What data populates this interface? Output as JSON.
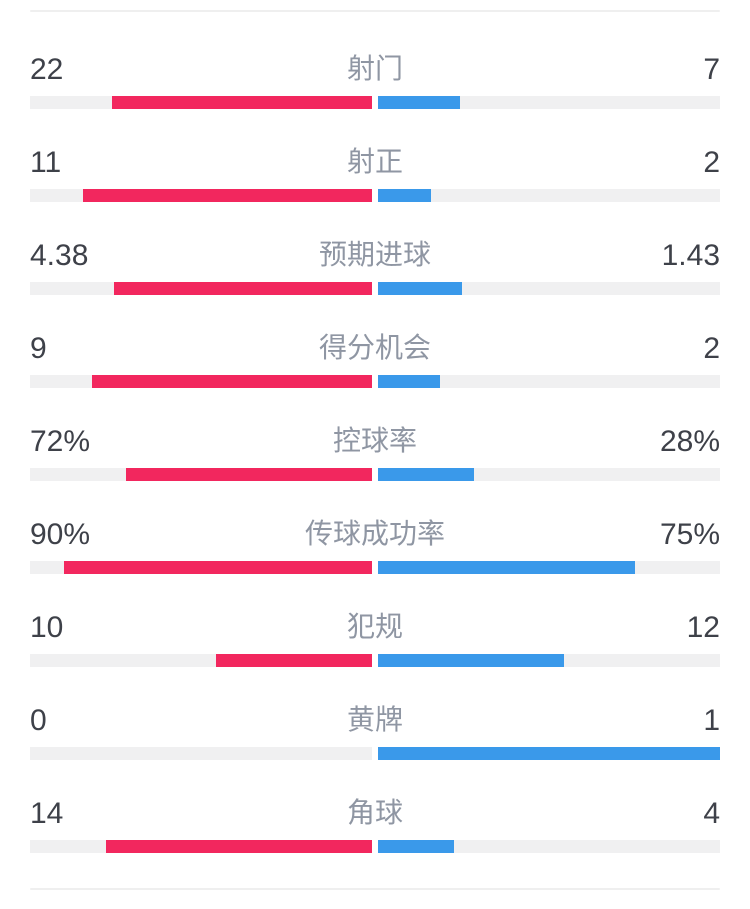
{
  "colors": {
    "home": "#F2275E",
    "away": "#3A99EA",
    "track": "#F0F0F1",
    "value_text": "#3E4149",
    "label_text": "#8F96A3",
    "divider": "#EFEFEF",
    "background": "#FFFFFF"
  },
  "chart_data": {
    "type": "bar",
    "orientation": "horizontal-opposed",
    "title": "",
    "legend_position": "none",
    "grid": false,
    "categories": [
      "射门",
      "射正",
      "预期进球",
      "得分机会",
      "控球率",
      "传球成功率",
      "犯规",
      "黄牌",
      "角球"
    ],
    "series": [
      {
        "name": "home",
        "color": "#F2275E",
        "values": [
          22,
          11,
          4.38,
          9,
          72,
          90,
          10,
          0,
          14
        ]
      },
      {
        "name": "away",
        "color": "#3A99EA",
        "values": [
          7,
          2,
          1.43,
          2,
          28,
          75,
          12,
          1,
          4
        ]
      }
    ],
    "units": [
      "count",
      "count",
      "goals",
      "count",
      "percent",
      "percent",
      "count",
      "count",
      "count"
    ],
    "bar_scale_rule": "percent rows: value/100 of half width; count rows: value/(home+away) of half width"
  },
  "rows": [
    {
      "label": "射门",
      "left": "22",
      "right": "7",
      "left_pct": 75.9,
      "right_pct": 24.1
    },
    {
      "label": "射正",
      "left": "11",
      "right": "2",
      "left_pct": 84.6,
      "right_pct": 15.4
    },
    {
      "label": "预期进球",
      "left": "4.38",
      "right": "1.43",
      "left_pct": 75.4,
      "right_pct": 24.6
    },
    {
      "label": "得分机会",
      "left": "9",
      "right": "2",
      "left_pct": 81.8,
      "right_pct": 18.2
    },
    {
      "label": "控球率",
      "left": "72%",
      "right": "28%",
      "left_pct": 72.0,
      "right_pct": 28.0
    },
    {
      "label": "传球成功率",
      "left": "90%",
      "right": "75%",
      "left_pct": 90.0,
      "right_pct": 75.0
    },
    {
      "label": "犯规",
      "left": "10",
      "right": "12",
      "left_pct": 45.5,
      "right_pct": 54.5
    },
    {
      "label": "黄牌",
      "left": "0",
      "right": "1",
      "left_pct": 0.0,
      "right_pct": 100.0
    },
    {
      "label": "角球",
      "left": "14",
      "right": "4",
      "left_pct": 77.8,
      "right_pct": 22.2
    }
  ]
}
